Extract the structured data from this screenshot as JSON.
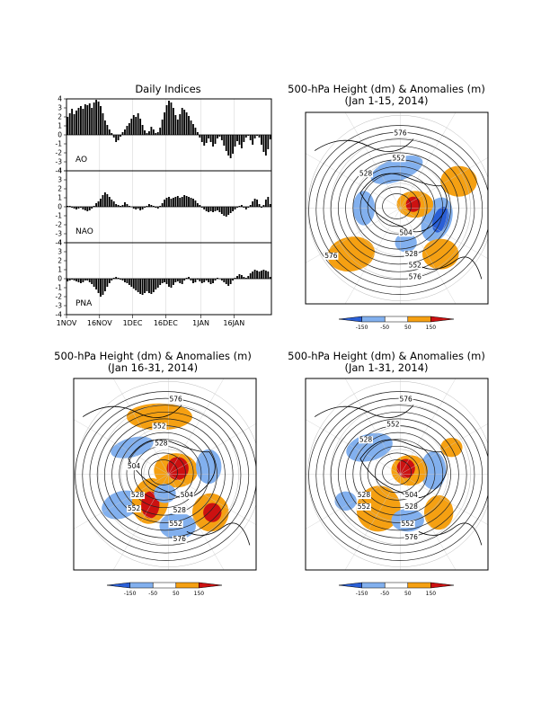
{
  "indices_panel": {
    "title": "Daily Indices",
    "x_ticks": [
      "1NOV",
      "16NOV",
      "1DEC",
      "16DEC",
      "1JAN",
      "16JAN"
    ],
    "y_ticks": [
      "4",
      "3",
      "2",
      "1",
      "0",
      "-1",
      "-2",
      "-3",
      "-4"
    ]
  },
  "maps": [
    {
      "title_line1": "500-hPa Height (dm) & Anomalies (m)",
      "title_line2": "(Jan 1-15, 2014)",
      "contour_labels": [
        "576",
        "552",
        "528",
        "504",
        "528",
        "552",
        "576",
        "576"
      ]
    },
    {
      "title_line1": "500-hPa Height (dm) & Anomalies (m)",
      "title_line2": "(Jan 16-31, 2014)",
      "contour_labels": [
        "576",
        "552",
        "528",
        "504",
        "528",
        "552",
        "504",
        "528",
        "552",
        "576"
      ]
    },
    {
      "title_line1": "500-hPa Height (dm) & Anomalies (m)",
      "title_line2": "(Jan 1-31, 2014)",
      "contour_labels": [
        "576",
        "552",
        "528",
        "528",
        "552",
        "504",
        "528",
        "552",
        "576"
      ]
    }
  ],
  "colorbar": {
    "labels": [
      "-150",
      "-50",
      "50",
      "150"
    ],
    "colors": [
      "#2a5fd6",
      "#82b0ee",
      "#ffffff",
      "#f5a012",
      "#cc1111"
    ]
  },
  "chart_data": [
    {
      "type": "bar",
      "name": "AO",
      "ylim": [
        -4,
        4
      ],
      "x_start": "1NOV",
      "values": [
        2.0,
        2.4,
        2.9,
        2.3,
        2.7,
        3.0,
        3.2,
        2.9,
        3.4,
        3.3,
        3.5,
        3.0,
        3.6,
        3.9,
        3.7,
        3.2,
        2.4,
        1.6,
        1.1,
        0.6,
        0.2,
        -0.3,
        -0.8,
        -0.6,
        -0.2,
        0.3,
        0.6,
        1.0,
        1.3,
        1.8,
        2.2,
        2.0,
        2.4,
        1.8,
        1.1,
        0.5,
        0.2,
        0.4,
        0.9,
        0.6,
        0.2,
        0.3,
        0.8,
        1.7,
        2.5,
        3.3,
        3.8,
        3.6,
        3.0,
        2.2,
        1.7,
        2.3,
        3.0,
        2.8,
        2.5,
        2.1,
        1.6,
        1.2,
        0.8,
        0.3,
        -0.3,
        -0.8,
        -1.2,
        -0.9,
        -0.4,
        -0.8,
        -1.3,
        -1.0,
        -0.4,
        -0.2,
        -0.6,
        -1.2,
        -1.8,
        -2.3,
        -2.6,
        -2.1,
        -1.3,
        -0.7,
        -1.1,
        -1.5,
        -0.8,
        -0.3,
        -0.1,
        -0.6,
        -1.1,
        -0.4,
        -0.1,
        -0.3,
        -1.1,
        -1.9,
        -2.3,
        -1.6,
        -0.5
      ]
    },
    {
      "type": "bar",
      "name": "NAO",
      "ylim": [
        -4,
        4
      ],
      "x_start": "1NOV",
      "values": [
        0.1,
        0.1,
        -0.1,
        -0.2,
        -0.3,
        -0.2,
        -0.1,
        -0.3,
        -0.4,
        -0.5,
        -0.4,
        -0.2,
        0.1,
        0.4,
        0.6,
        0.9,
        1.3,
        1.6,
        1.4,
        1.1,
        0.8,
        0.6,
        0.3,
        0.2,
        0.1,
        0.2,
        0.5,
        0.3,
        0.1,
        0.0,
        -0.2,
        -0.3,
        -0.2,
        -0.4,
        -0.3,
        -0.1,
        0.1,
        0.3,
        0.2,
        0.1,
        -0.1,
        -0.2,
        0.1,
        0.4,
        0.8,
        1.0,
        1.1,
        0.9,
        1.0,
        1.1,
        1.2,
        1.0,
        1.1,
        1.3,
        1.2,
        1.1,
        1.0,
        0.9,
        0.7,
        0.4,
        0.2,
        -0.1,
        -0.3,
        -0.5,
        -0.6,
        -0.5,
        -0.6,
        -0.5,
        -0.4,
        -0.6,
        -0.8,
        -1.0,
        -1.1,
        -0.9,
        -0.7,
        -0.5,
        -0.3,
        -0.1,
        0.1,
        0.2,
        -0.1,
        -0.3,
        -0.1,
        0.2,
        0.6,
        0.9,
        0.8,
        0.3,
        -0.1,
        0.2,
        0.8,
        1.1,
        0.3
      ]
    },
    {
      "type": "bar",
      "name": "PNA",
      "ylim": [
        -4,
        4
      ],
      "x_start": "1NOV",
      "values": [
        -0.3,
        -0.2,
        -0.1,
        -0.2,
        -0.3,
        -0.4,
        -0.5,
        -0.4,
        -0.2,
        -0.2,
        -0.4,
        -0.6,
        -0.9,
        -1.2,
        -1.6,
        -2.0,
        -1.8,
        -1.4,
        -0.9,
        -0.5,
        -0.2,
        0.1,
        0.2,
        0.1,
        -0.1,
        -0.2,
        -0.4,
        -0.5,
        -0.7,
        -0.9,
        -1.1,
        -1.3,
        -1.5,
        -1.7,
        -1.8,
        -1.6,
        -1.4,
        -1.6,
        -1.7,
        -1.5,
        -1.2,
        -1.0,
        -0.7,
        -0.5,
        -0.4,
        -0.6,
        -0.9,
        -1.0,
        -0.7,
        -0.4,
        -0.3,
        -0.5,
        -0.6,
        -0.2,
        0.1,
        0.2,
        -0.2,
        -0.5,
        -0.4,
        -0.1,
        -0.3,
        -0.5,
        -0.4,
        -0.2,
        -0.4,
        -0.6,
        -0.5,
        -0.2,
        0.1,
        0.0,
        -0.2,
        -0.4,
        -0.6,
        -0.8,
        -0.6,
        -0.2,
        0.1,
        0.3,
        0.5,
        0.4,
        0.2,
        0.1,
        0.3,
        0.6,
        0.8,
        1.0,
        0.9,
        0.8,
        0.9,
        1.0,
        0.9,
        0.8,
        0.2
      ]
    }
  ]
}
